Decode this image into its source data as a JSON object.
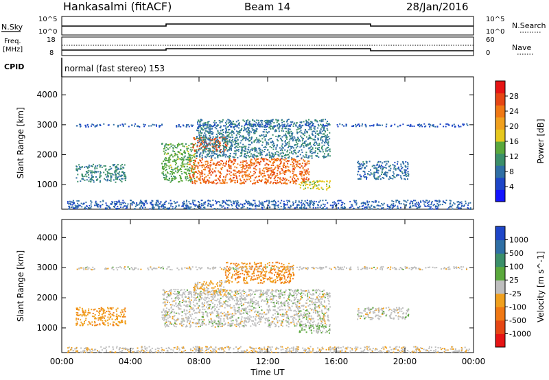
{
  "header": {
    "station": "Hankasalmi (fitACF)",
    "beam": "Beam 14",
    "date": "28/Jan/2016"
  },
  "param_panels": {
    "nsky_label": "N.Sky",
    "nsky_top": "10^5",
    "nsky_bottom": "10^0",
    "nsearch_label": "N.Search",
    "nsearch_top": "10^5",
    "nsearch_bottom": "10^0",
    "freq_label": "Freq.",
    "freq_unit": "[MHz]",
    "freq_top": "18",
    "freq_bottom": "8",
    "nave_label": "Nave",
    "nave_top": "60",
    "nave_bottom": "0",
    "cpid_label": "CPID",
    "cpid_text": "normal (fast stereo) 153"
  },
  "chart_data": [
    {
      "type": "heatmap",
      "title": "",
      "xlabel": "Time UT",
      "ylabel": "Slant Range [km]",
      "x_ticks": [
        "00:00",
        "04:00",
        "08:00",
        "12:00",
        "16:00",
        "20:00",
        "00:00"
      ],
      "y_ticks": [
        "1000",
        "2000",
        "3000",
        "4000"
      ],
      "ylim": [
        180,
        4600
      ],
      "colorbar": {
        "label": "Power [dB]",
        "ticks": [
          "4",
          "8",
          "12",
          "16",
          "20",
          "24",
          "28"
        ],
        "range": [
          0,
          32
        ],
        "colors": [
          "#1414ff",
          "#1e46c8",
          "#2f6fa5",
          "#3b8f6a",
          "#5aa83c",
          "#e6c81e",
          "#f0a01e",
          "#f07814",
          "#e64614",
          "#e61414"
        ]
      },
      "regions": [
        {
          "t0": 0.8,
          "t1": 3.7,
          "r0": 1100,
          "r1": 1700,
          "v": 10
        },
        {
          "t0": 5.8,
          "t1": 7.8,
          "r0": 1100,
          "r1": 2400,
          "v": 14
        },
        {
          "t0": 7.4,
          "t1": 14.4,
          "r0": 1050,
          "r1": 1900,
          "v": 25
        },
        {
          "t0": 7.6,
          "t1": 9.6,
          "r0": 2100,
          "r1": 2600,
          "v": 27
        },
        {
          "t0": 7.8,
          "t1": 15.6,
          "r0": 1900,
          "r1": 3200,
          "v": 9
        },
        {
          "t0": 13.8,
          "t1": 15.6,
          "r0": 850,
          "r1": 1150,
          "v": 17
        },
        {
          "t0": 17.2,
          "t1": 20.2,
          "r0": 1200,
          "r1": 1800,
          "v": 8
        },
        {
          "t0": 0.3,
          "t1": 23.8,
          "r0": 200,
          "r1": 500,
          "v": 7
        },
        {
          "t0": 0.8,
          "t1": 23.8,
          "r0": 2950,
          "r1": 3050,
          "v": 6
        }
      ]
    },
    {
      "type": "heatmap",
      "title": "",
      "xlabel": "Time UT",
      "ylabel": "Slant Range [km]",
      "x_ticks": [
        "00:00",
        "04:00",
        "08:00",
        "12:00",
        "16:00",
        "20:00",
        "00:00"
      ],
      "y_ticks": [
        "1000",
        "2000",
        "3000",
        "4000"
      ],
      "ylim": [
        180,
        4600
      ],
      "colorbar": {
        "label": "Velocity [m s^-1]",
        "ticks": [
          "1000",
          "500",
          "100",
          "25",
          "-25",
          "-100",
          "-500",
          "-1000"
        ],
        "range": [
          -1200,
          1200
        ],
        "colors": [
          "#e61414",
          "#e64614",
          "#f07814",
          "#f0a01e",
          "#bebebe",
          "#5aa83c",
          "#3b8f6a",
          "#2f6fa5",
          "#1e46c8"
        ]
      },
      "regions": [
        {
          "t0": 0.8,
          "t1": 3.7,
          "r0": 1100,
          "r1": 1700,
          "v": -300
        },
        {
          "t0": 5.8,
          "t1": 15.6,
          "r0": 1050,
          "r1": 2300,
          "v": 0
        },
        {
          "t0": 7.6,
          "t1": 9.6,
          "r0": 2100,
          "r1": 2600,
          "v": -150
        },
        {
          "t0": 9.5,
          "t1": 13.5,
          "r0": 2500,
          "r1": 3200,
          "v": -400
        },
        {
          "t0": 13.8,
          "t1": 15.6,
          "r0": 850,
          "r1": 1150,
          "v": 150
        },
        {
          "t0": 17.2,
          "t1": 20.2,
          "r0": 1300,
          "r1": 1700,
          "v": 0
        },
        {
          "t0": 0.3,
          "t1": 23.8,
          "r0": 200,
          "r1": 400,
          "v": -60
        },
        {
          "t0": 0.8,
          "t1": 23.8,
          "r0": 2950,
          "r1": 3050,
          "v": -20
        }
      ]
    }
  ]
}
